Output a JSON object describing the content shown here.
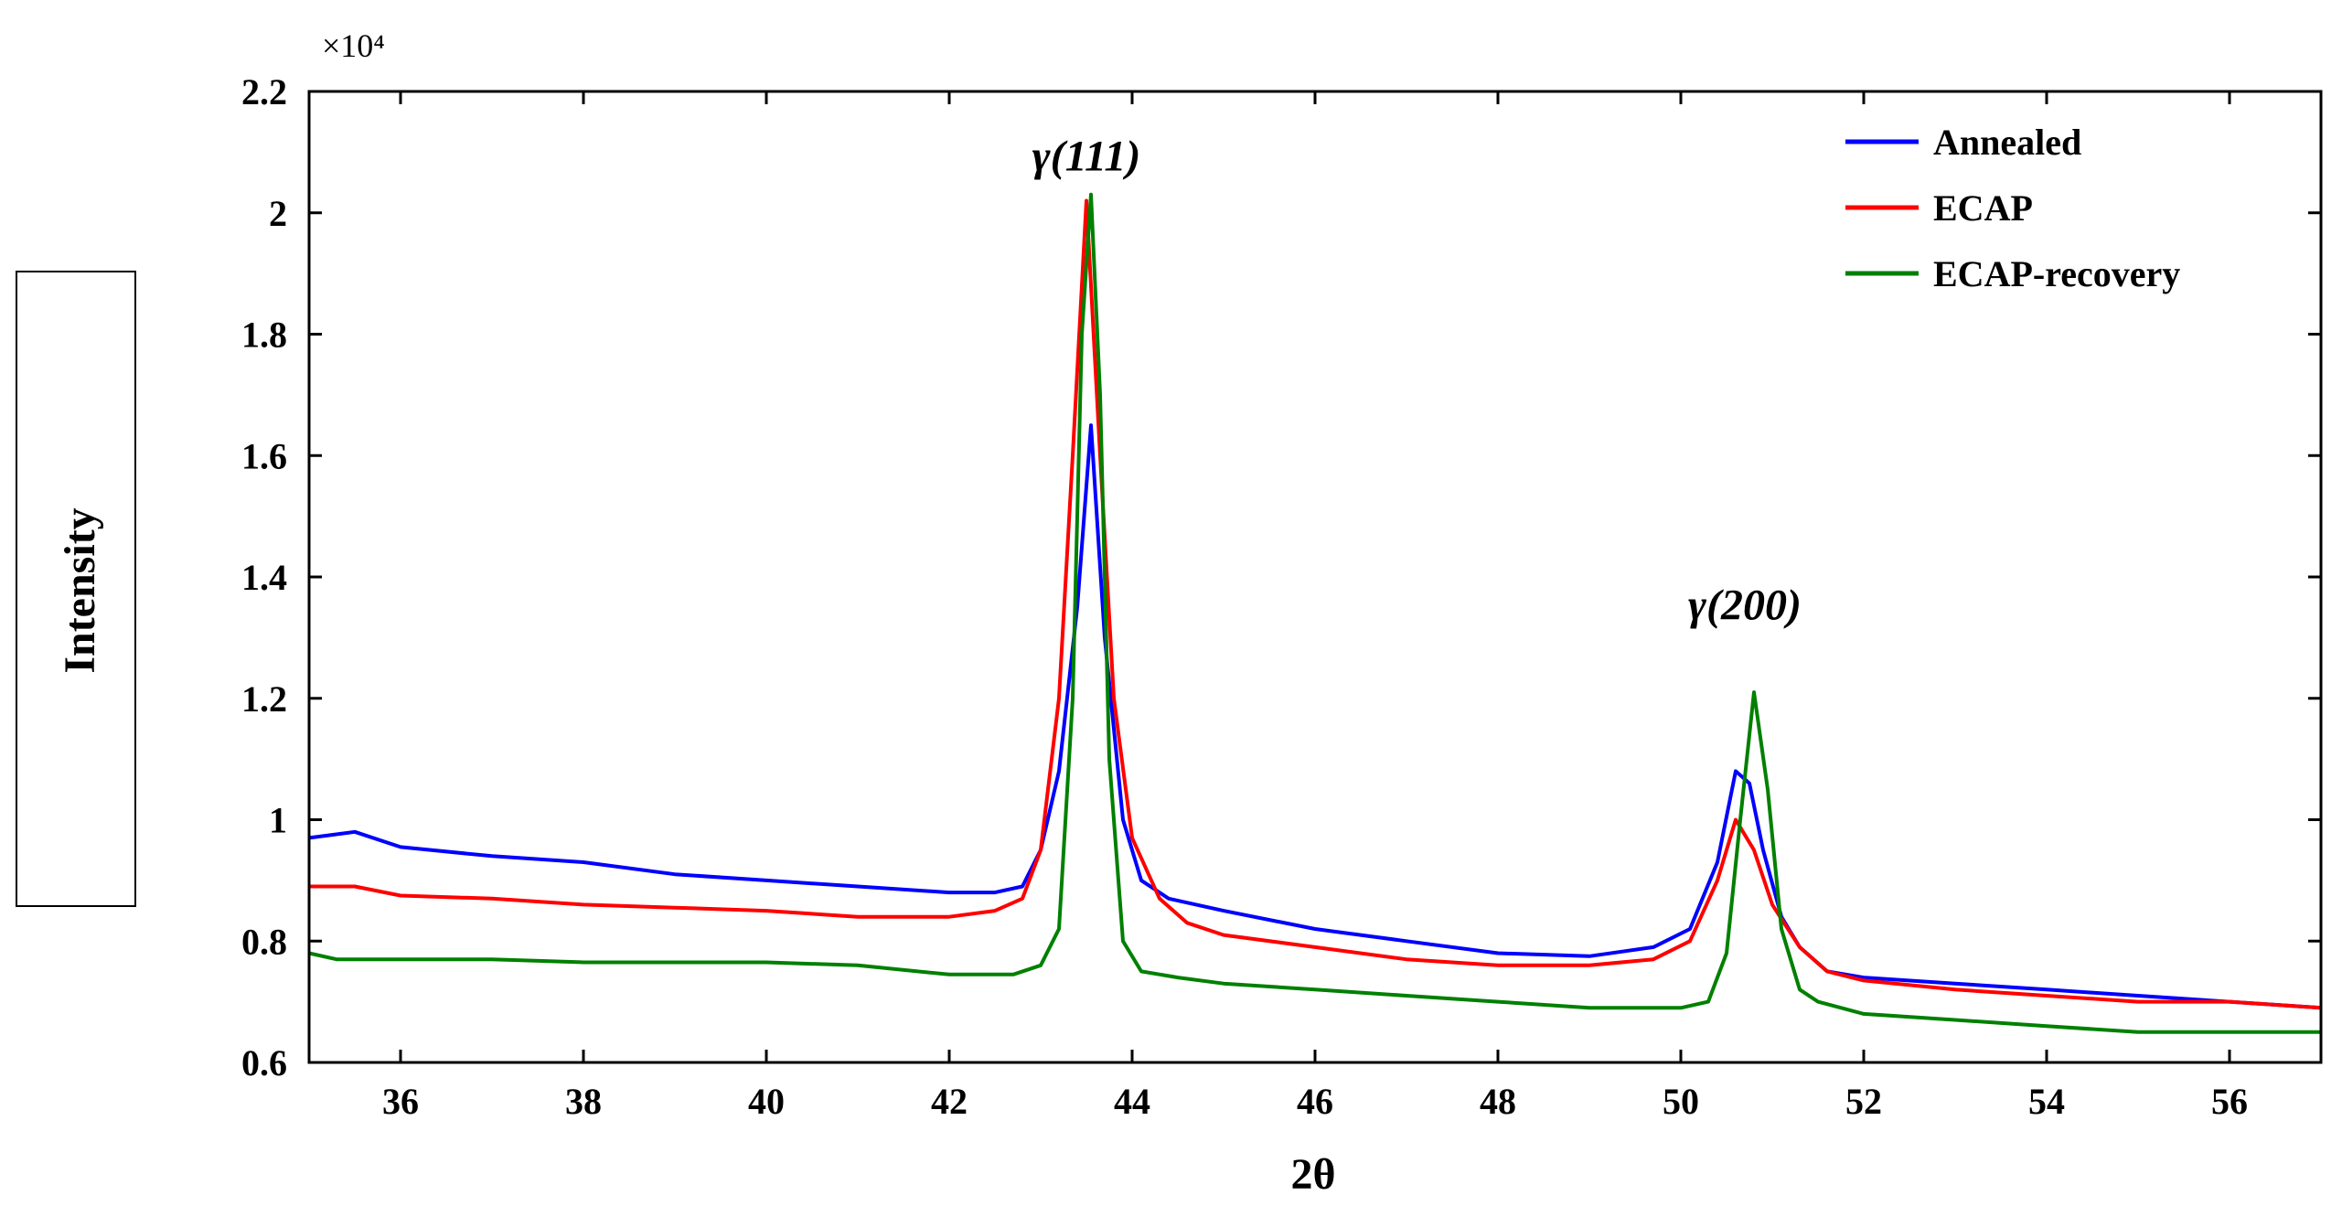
{
  "chart_data": {
    "type": "line",
    "xlabel": "2θ",
    "ylabel": "Intensity",
    "y_exponent_label": "×10⁴",
    "xlim": [
      35,
      57
    ],
    "ylim": [
      0.6,
      2.2
    ],
    "x_ticks": [
      36,
      38,
      40,
      42,
      44,
      46,
      48,
      50,
      52,
      54,
      56
    ],
    "y_ticks": [
      0.6,
      0.8,
      1,
      1.2,
      1.4,
      1.6,
      1.8,
      2,
      2.2
    ],
    "y_tick_labels": [
      "0.6",
      "0.8",
      "1",
      "1.2",
      "1.4",
      "1.6",
      "1.8",
      "2",
      "2.2"
    ],
    "grid": false,
    "legend_position": "top-right",
    "annotations": [
      {
        "text": "γ(111)",
        "x": 43.5,
        "y": 2.07
      },
      {
        "text": "γ(200)",
        "x": 50.7,
        "y": 1.33
      }
    ],
    "series": [
      {
        "name": "Annealed",
        "color": "#0000ff",
        "x": [
          35.0,
          35.5,
          36.0,
          37.0,
          38.0,
          39.0,
          40.0,
          41.0,
          42.0,
          42.5,
          42.8,
          43.0,
          43.2,
          43.4,
          43.55,
          43.7,
          43.9,
          44.1,
          44.4,
          45.0,
          46.0,
          47.0,
          48.0,
          49.0,
          49.7,
          50.1,
          50.4,
          50.6,
          50.75,
          50.9,
          51.1,
          51.3,
          51.6,
          52.0,
          53.0,
          54.0,
          55.0,
          56.0,
          57.0
        ],
        "values": [
          0.97,
          0.98,
          0.955,
          0.94,
          0.93,
          0.91,
          0.9,
          0.89,
          0.88,
          0.88,
          0.89,
          0.95,
          1.08,
          1.35,
          1.65,
          1.3,
          1.0,
          0.9,
          0.87,
          0.85,
          0.82,
          0.8,
          0.78,
          0.775,
          0.79,
          0.82,
          0.93,
          1.08,
          1.06,
          0.95,
          0.84,
          0.79,
          0.75,
          0.74,
          0.73,
          0.72,
          0.71,
          0.7,
          0.69
        ]
      },
      {
        "name": "ECAP",
        "color": "#ff0000",
        "x": [
          35.0,
          35.5,
          36.0,
          37.0,
          38.0,
          39.0,
          40.0,
          41.0,
          42.0,
          42.5,
          42.8,
          43.0,
          43.2,
          43.35,
          43.5,
          43.65,
          43.8,
          44.0,
          44.3,
          44.6,
          45.0,
          46.0,
          47.0,
          48.0,
          49.0,
          49.7,
          50.1,
          50.4,
          50.6,
          50.8,
          51.0,
          51.3,
          51.6,
          52.0,
          53.0,
          54.0,
          55.0,
          56.0,
          57.0
        ],
        "values": [
          0.89,
          0.89,
          0.875,
          0.87,
          0.86,
          0.855,
          0.85,
          0.84,
          0.84,
          0.85,
          0.87,
          0.95,
          1.2,
          1.6,
          2.02,
          1.6,
          1.2,
          0.97,
          0.87,
          0.83,
          0.81,
          0.79,
          0.77,
          0.76,
          0.76,
          0.77,
          0.8,
          0.9,
          1.0,
          0.95,
          0.86,
          0.79,
          0.75,
          0.735,
          0.72,
          0.71,
          0.7,
          0.7,
          0.69
        ]
      },
      {
        "name": "ECAP-recovery",
        "color": "#008000",
        "x": [
          35.0,
          35.3,
          36.0,
          37.0,
          38.0,
          39.0,
          40.0,
          41.0,
          42.0,
          42.7,
          43.0,
          43.2,
          43.35,
          43.45,
          43.55,
          43.65,
          43.75,
          43.9,
          44.1,
          44.5,
          45.0,
          46.0,
          47.0,
          48.0,
          49.0,
          50.0,
          50.3,
          50.5,
          50.65,
          50.8,
          50.95,
          51.1,
          51.3,
          51.5,
          52.0,
          53.0,
          54.0,
          55.0,
          56.0,
          57.0
        ],
        "values": [
          0.78,
          0.77,
          0.77,
          0.77,
          0.765,
          0.765,
          0.765,
          0.76,
          0.745,
          0.745,
          0.76,
          0.82,
          1.2,
          1.8,
          2.03,
          1.7,
          1.1,
          0.8,
          0.75,
          0.74,
          0.73,
          0.72,
          0.71,
          0.7,
          0.69,
          0.69,
          0.7,
          0.78,
          1.0,
          1.21,
          1.05,
          0.82,
          0.72,
          0.7,
          0.68,
          0.67,
          0.66,
          0.65,
          0.65,
          0.65
        ]
      }
    ]
  }
}
